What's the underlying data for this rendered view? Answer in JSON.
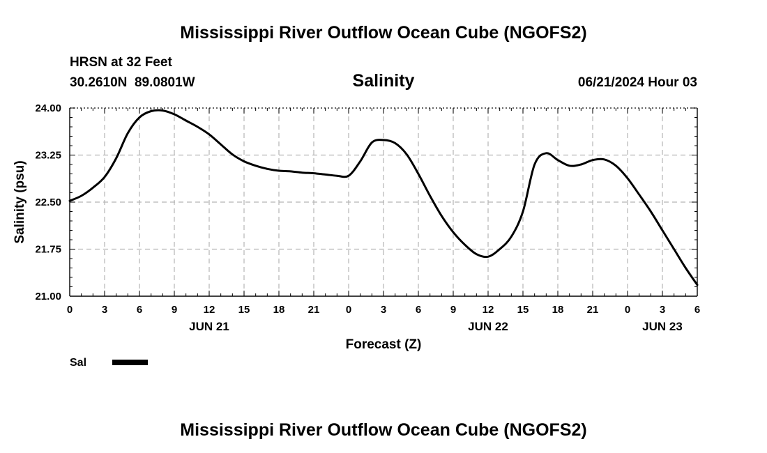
{
  "page": {
    "title_top": "Mississippi River Outflow Ocean Cube (NGOFS2)",
    "title_bottom": "Mississippi River Outflow Ocean Cube (NGOFS2)",
    "station_line": "HRSN at 32 Feet",
    "coords_line": "30.2610N  89.0801W",
    "timestamp": "06/21/2024 Hour 03"
  },
  "chart_data": {
    "type": "line",
    "title": "Salinity",
    "xlabel": "Forecast (Z)",
    "ylabel": "Salinity (psu)",
    "x_units": "hours since 2024-06-21 00Z",
    "xlim": [
      0,
      54
    ],
    "ylim": [
      21.0,
      24.0
    ],
    "y_ticks": [
      21.0,
      21.75,
      22.5,
      23.25,
      24.0
    ],
    "y_tick_labels": [
      "21.00",
      "21.75",
      "22.50",
      "23.25",
      "24.00"
    ],
    "x_ticks": [
      0,
      3,
      6,
      9,
      12,
      15,
      18,
      21,
      24,
      27,
      30,
      33,
      36,
      39,
      42,
      45,
      48,
      51,
      54
    ],
    "x_tick_labels": [
      "0",
      "3",
      "6",
      "9",
      "12",
      "15",
      "18",
      "21",
      "0",
      "3",
      "6",
      "9",
      "12",
      "15",
      "18",
      "21",
      "0",
      "3",
      "6"
    ],
    "date_labels": [
      {
        "x": 12,
        "label": "JUN 21"
      },
      {
        "x": 36,
        "label": "JUN 22"
      },
      {
        "x": 51,
        "label": "JUN 23"
      }
    ],
    "grid": true,
    "legend": [
      {
        "name": "Sal"
      }
    ],
    "series": [
      {
        "name": "Sal",
        "x": [
          0,
          1,
          2,
          3,
          4,
          5,
          6,
          7,
          8,
          9,
          10,
          11,
          12,
          13,
          14,
          15,
          16,
          17,
          18,
          19,
          20,
          21,
          22,
          23,
          24,
          25,
          26,
          27,
          28,
          29,
          30,
          31,
          32,
          33,
          34,
          35,
          36,
          37,
          38,
          39,
          40,
          41,
          42,
          43,
          44,
          45,
          46,
          47,
          48,
          49,
          50,
          51,
          52,
          53,
          54
        ],
        "values": [
          22.52,
          22.6,
          22.73,
          22.9,
          23.2,
          23.6,
          23.85,
          23.95,
          23.96,
          23.9,
          23.8,
          23.7,
          23.58,
          23.42,
          23.26,
          23.15,
          23.08,
          23.03,
          23.0,
          22.99,
          22.97,
          22.96,
          22.94,
          22.92,
          22.92,
          23.15,
          23.45,
          23.49,
          23.44,
          23.26,
          22.95,
          22.6,
          22.28,
          22.02,
          21.82,
          21.67,
          21.63,
          21.75,
          21.95,
          22.35,
          23.1,
          23.28,
          23.17,
          23.08,
          23.1,
          23.17,
          23.18,
          23.08,
          22.88,
          22.62,
          22.35,
          22.05,
          21.75,
          21.45,
          21.18
        ]
      }
    ]
  }
}
